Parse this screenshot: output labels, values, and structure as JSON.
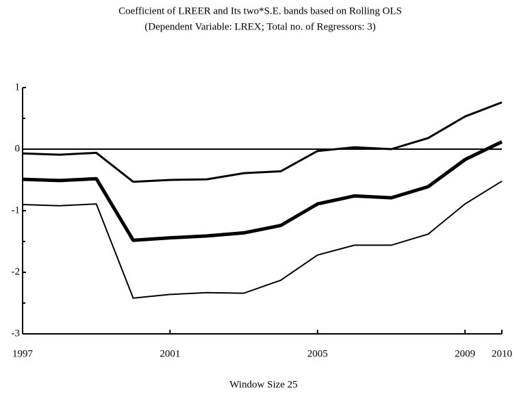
{
  "chart_data": {
    "type": "line",
    "title": "Coefficient of LREER and Its two*S.E. bands based on Rolling OLS",
    "subtitle": "(Dependent Variable: LREX; Total no. of Regressors: 3)",
    "x_label": "Window Size 25",
    "x": [
      1997,
      1998,
      1999,
      2000,
      2001,
      2002,
      2003,
      2004,
      2005,
      2006,
      2007,
      2008,
      2009,
      2010
    ],
    "xlim": [
      1997,
      2010
    ],
    "xticks": [
      1997,
      2001,
      2005,
      2009,
      2010
    ],
    "ylim": [
      -3,
      1
    ],
    "yticks": [
      -3,
      -2,
      -1,
      0,
      1
    ],
    "series": [
      {
        "color": "#000000",
        "width": 3,
        "values": [
          -0.07,
          -0.09,
          -0.06,
          -0.53,
          -0.5,
          -0.49,
          -0.39,
          -0.36,
          -0.03,
          0.03,
          0.0,
          0.18,
          0.53,
          0.76
        ]
      },
      {
        "color": "#000000",
        "width": 5,
        "values": [
          -0.49,
          -0.51,
          -0.48,
          -1.48,
          -1.44,
          -1.41,
          -1.36,
          -1.24,
          -0.89,
          -0.76,
          -0.79,
          -0.61,
          -0.17,
          0.12
        ]
      },
      {
        "color": "#000000",
        "width": 2,
        "values": [
          -0.9,
          -0.92,
          -0.89,
          -2.42,
          -2.36,
          -2.33,
          -2.34,
          -2.13,
          -1.72,
          -1.56,
          -1.56,
          -1.38,
          -0.89,
          -0.52
        ]
      }
    ]
  }
}
